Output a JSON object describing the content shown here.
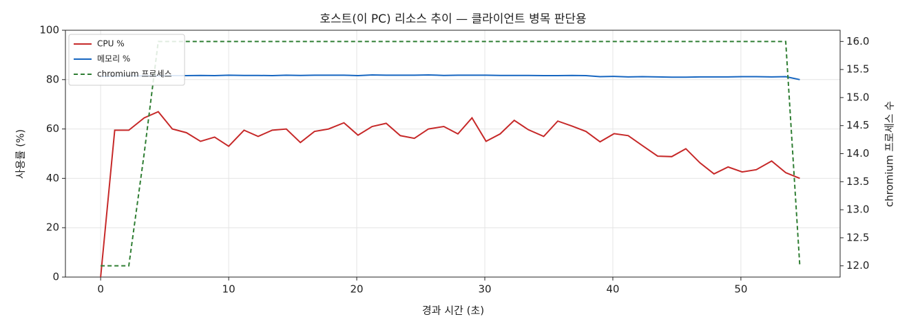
{
  "chart_data": {
    "type": "line",
    "title": "호스트(이 PC) 리소스 추이 — 클라이언트 병목 판단용",
    "x_label": "경과 시간 (초)",
    "y_label": "사용률 (%)",
    "y2_label": "chromium 프로세스 수",
    "x": [
      0,
      1.1,
      2.2,
      3.4,
      4.5,
      5.6,
      6.7,
      7.8,
      8.9,
      10.0,
      11.2,
      12.3,
      13.4,
      14.5,
      15.6,
      16.7,
      17.8,
      19.0,
      20.1,
      21.2,
      22.3,
      23.4,
      24.5,
      25.6,
      26.8,
      27.9,
      29.0,
      30.1,
      31.2,
      32.3,
      33.4,
      34.6,
      35.7,
      36.8,
      37.9,
      39.0,
      40.1,
      41.2,
      42.3,
      43.5,
      44.6,
      45.7,
      46.8,
      47.9,
      49.0,
      50.1,
      51.2,
      52.4,
      53.5,
      54.6
    ],
    "series": [
      {
        "name": "CPU %",
        "color": "#c62828",
        "dash": false,
        "values": [
          0,
          59.5,
          59.5,
          64.5,
          67,
          60,
          58.5,
          55,
          56.7,
          53,
          59.5,
          57,
          59.5,
          60,
          54.5,
          59,
          60,
          62.5,
          57.5,
          61,
          62.3,
          57.3,
          56.2,
          60,
          61,
          58,
          64.5,
          55,
          58,
          63.5,
          59.7,
          57,
          63.2,
          61.2,
          59,
          54.8,
          58.1,
          57.3,
          53.3,
          49,
          48.8,
          52,
          46.3,
          41.8,
          44.6,
          42.6,
          43.5,
          47,
          42.3,
          40
        ]
      },
      {
        "name": "메모리 %",
        "color": "#1565c0",
        "dash": false,
        "values": [
          81.3,
          81.4,
          81.5,
          81.5,
          81.5,
          81.6,
          81.6,
          81.7,
          81.6,
          81.8,
          81.7,
          81.7,
          81.6,
          81.8,
          81.7,
          81.8,
          81.8,
          81.8,
          81.6,
          81.9,
          81.8,
          81.8,
          81.8,
          81.9,
          81.7,
          81.8,
          81.8,
          81.8,
          81.7,
          81.7,
          81.7,
          81.6,
          81.6,
          81.7,
          81.6,
          81.2,
          81.3,
          81.1,
          81.2,
          81.1,
          81.0,
          81.0,
          81.1,
          81.1,
          81.1,
          81.2,
          81.2,
          81.1,
          81.2,
          80.0
        ]
      },
      {
        "name": "chromium 프로세스",
        "color": "#2e7d32",
        "dash": true,
        "axis": "y2",
        "values": [
          12,
          12,
          12,
          14,
          16,
          16,
          16,
          16,
          16,
          16,
          16,
          16,
          16,
          16,
          16,
          16,
          16,
          16,
          16,
          16,
          16,
          16,
          16,
          16,
          16,
          16,
          16,
          16,
          16,
          16,
          16,
          16,
          16,
          16,
          16,
          16,
          16,
          16,
          16,
          16,
          16,
          16,
          16,
          16,
          16,
          16,
          16,
          16,
          16,
          12
        ]
      }
    ],
    "xlim": [
      -2.75,
      57.75
    ],
    "xticks": [
      0,
      10,
      20,
      30,
      40,
      50
    ],
    "ylim": [
      0,
      100
    ],
    "yticks": [
      0,
      20,
      40,
      60,
      80,
      100
    ],
    "y2lim": [
      11.8,
      16.2
    ],
    "y2ticks": [
      {
        "value": 12,
        "label": "12.0"
      },
      12.5,
      {
        "value": 13,
        "label": "13.0"
      },
      13.5,
      {
        "value": 14,
        "label": "14.0"
      },
      14.5,
      {
        "value": 15,
        "label": "15.0"
      },
      15.5,
      {
        "value": 16,
        "label": "16.0"
      }
    ],
    "grid": true,
    "legend": "upper left"
  }
}
